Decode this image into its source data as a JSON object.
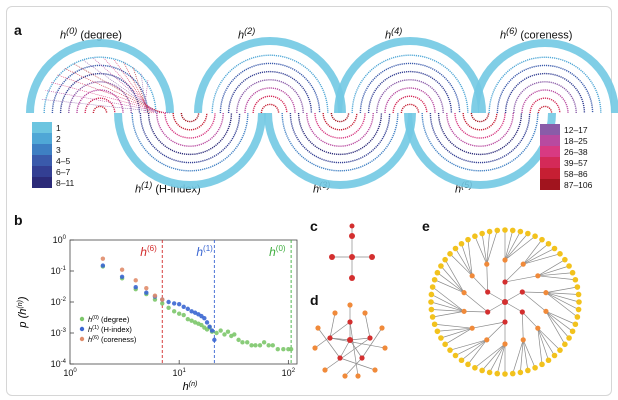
{
  "panel_a": {
    "label": "a",
    "titles_top": [
      "(degree)",
      "",
      "",
      "(coreness)"
    ],
    "titles_bottom": [
      "(H-index)",
      "",
      ""
    ],
    "legend_left": [
      {
        "label": "1",
        "color": "#6cc5e0"
      },
      {
        "label": "2",
        "color": "#4fa7d6"
      },
      {
        "label": "3",
        "color": "#3e7fc3"
      },
      {
        "label": "4–5",
        "color": "#3a5aab"
      },
      {
        "label": "6–7",
        "color": "#333f93"
      },
      {
        "label": "8–11",
        "color": "#2b2a78"
      }
    ],
    "legend_right": [
      {
        "label": "12–17",
        "color": "#8a5ca8"
      },
      {
        "label": "18–25",
        "color": "#b84aa0"
      },
      {
        "label": "26–38",
        "color": "#d83a82"
      },
      {
        "label": "39–57",
        "color": "#d42a58"
      },
      {
        "label": "58–86",
        "color": "#c61f33"
      },
      {
        "label": "87–106",
        "color": "#a1141e"
      }
    ]
  },
  "panel_b": {
    "label": "b",
    "ylabel": "p (h",
    "xlabel": "h",
    "annotations": [
      {
        "text": "h",
        "sup": "(6)",
        "color": "#d22b2b"
      },
      {
        "text": "h",
        "sup": "(1)",
        "color": "#3a66d2"
      },
      {
        "text": "h",
        "sup": "(0)",
        "color": "#3fae3f"
      }
    ],
    "legend": [
      {
        "sup": "(0)",
        "label": "(degree)",
        "color": "#7cc66a"
      },
      {
        "sup": "(1)",
        "label": "(H-index)",
        "color": "#3a66d2"
      },
      {
        "sup": "(6)",
        "label": "(coreness)",
        "color": "#e08c6a"
      }
    ]
  },
  "chart_data": {
    "type": "scatter",
    "title": "",
    "xlabel": "h(n)",
    "ylabel": "p (h(n))",
    "x_scale": "log",
    "y_scale": "log",
    "xlim": [
      1,
      120
    ],
    "ylim": [
      0.0001,
      1
    ],
    "x_ticks": [
      "10^0",
      "10^1",
      "10^2"
    ],
    "y_ticks": [
      "10^0",
      "10^-1",
      "10^-2",
      "10^-3",
      "10^-4"
    ],
    "vlines": [
      {
        "x": 7,
        "color": "#d22b2b"
      },
      {
        "x": 21,
        "color": "#3a66d2"
      },
      {
        "x": 106,
        "color": "#3fae3f"
      }
    ],
    "series": [
      {
        "name": "h(0) (degree)",
        "color": "#7cc66a",
        "x": [
          2,
          3,
          4,
          5,
          6,
          7,
          8,
          9,
          10,
          11,
          12,
          13,
          14,
          15,
          16,
          17,
          18,
          19,
          20,
          22,
          24,
          26,
          28,
          30,
          32,
          35,
          38,
          42,
          46,
          50,
          55,
          60,
          66,
          72,
          80,
          90,
          100,
          106
        ],
        "y": [
          0.14,
          0.058,
          0.026,
          0.018,
          0.012,
          0.009,
          0.0065,
          0.005,
          0.0042,
          0.0038,
          0.0028,
          0.0025,
          0.0022,
          0.002,
          0.0018,
          0.0015,
          0.0013,
          0.0015,
          0.0011,
          0.001,
          0.0012,
          0.0009,
          0.0011,
          0.0008,
          0.0009,
          0.0006,
          0.0005,
          0.0005,
          0.0004,
          0.0004,
          0.0004,
          0.0005,
          0.0004,
          0.0004,
          0.0003,
          0.0003,
          0.0003,
          0.0003
        ]
      },
      {
        "name": "h(1) (H-index)",
        "color": "#3a66d2",
        "x": [
          2,
          3,
          4,
          5,
          6,
          7,
          8,
          9,
          10,
          11,
          12,
          13,
          14,
          15,
          16,
          17,
          18,
          19,
          20,
          21
        ],
        "y": [
          0.15,
          0.065,
          0.03,
          0.02,
          0.015,
          0.012,
          0.01,
          0.009,
          0.0085,
          0.007,
          0.006,
          0.005,
          0.0045,
          0.004,
          0.0035,
          0.003,
          0.0022,
          0.0016,
          0.0012,
          0.0006
        ]
      },
      {
        "name": "h(6) (coreness)",
        "color": "#e08c6a",
        "x": [
          2,
          3,
          4,
          5,
          6,
          7
        ],
        "y": [
          0.25,
          0.11,
          0.05,
          0.028,
          0.016,
          0.012
        ]
      }
    ]
  },
  "panel_c": {
    "label": "c"
  },
  "panel_d": {
    "label": "d"
  },
  "panel_e": {
    "label": "e"
  }
}
